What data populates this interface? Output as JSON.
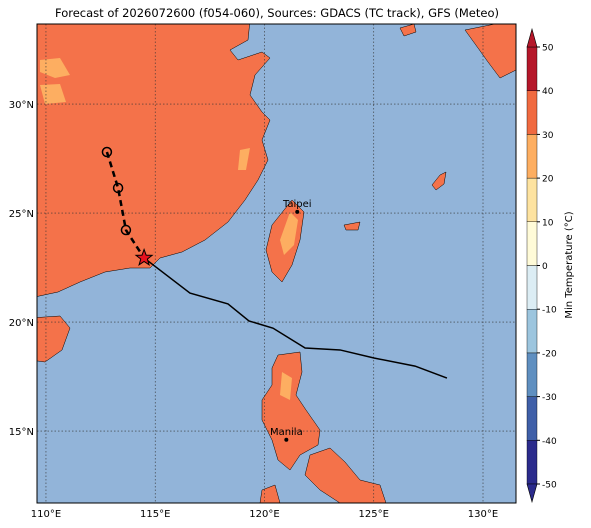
{
  "chart_data": {
    "type": "map",
    "title": "Forecast of 2026072600 (f054-060), Sources: GDACS (TC track), GFS (Meteo)",
    "xlim": [
      109.59,
      131.51
    ],
    "ylim": [
      11.7,
      33.67
    ],
    "xticks": [
      {
        "value": 110,
        "label": "110°E"
      },
      {
        "value": 115,
        "label": "115°E"
      },
      {
        "value": 120,
        "label": "120°E"
      },
      {
        "value": 125,
        "label": "125°E"
      },
      {
        "value": 130,
        "label": "130°E"
      }
    ],
    "yticks": [
      {
        "value": 15,
        "label": "15°N"
      },
      {
        "value": 20,
        "label": "20°N"
      },
      {
        "value": 25,
        "label": "25°N"
      },
      {
        "value": 30,
        "label": "30°N"
      }
    ],
    "grid": true,
    "ocean_color": "#92b4d9",
    "past_track": {
      "lon": [
        112.79,
        113.3,
        113.66,
        114.49
      ],
      "lat": [
        27.8,
        26.15,
        24.22,
        22.94
      ]
    },
    "forecast_track": {
      "lon": [
        114.49,
        116.59,
        118.33,
        119.29,
        120.39,
        121.86,
        123.46,
        125.01,
        126.89,
        128.35
      ],
      "lat": [
        22.94,
        21.33,
        20.83,
        20.05,
        19.72,
        18.81,
        18.72,
        18.35,
        17.98,
        17.43
      ]
    },
    "cities": [
      {
        "name": "Taipei",
        "lon": 121.5,
        "lat": 25.05
      },
      {
        "name": "Manila",
        "lon": 121.0,
        "lat": 14.6
      }
    ],
    "colorbar": {
      "label": "Min Temperature (°C)",
      "ticks": [
        -50,
        -40,
        -30,
        -20,
        -10,
        0,
        10,
        20,
        30,
        40,
        50
      ],
      "colors": [
        "#2b2b8c",
        "#3f5fa8",
        "#5f8fc0",
        "#9cc5de",
        "#dcedf4",
        "#fffbd8",
        "#fee3a0",
        "#fdae61",
        "#f06a40",
        "#b5172a"
      ]
    }
  }
}
